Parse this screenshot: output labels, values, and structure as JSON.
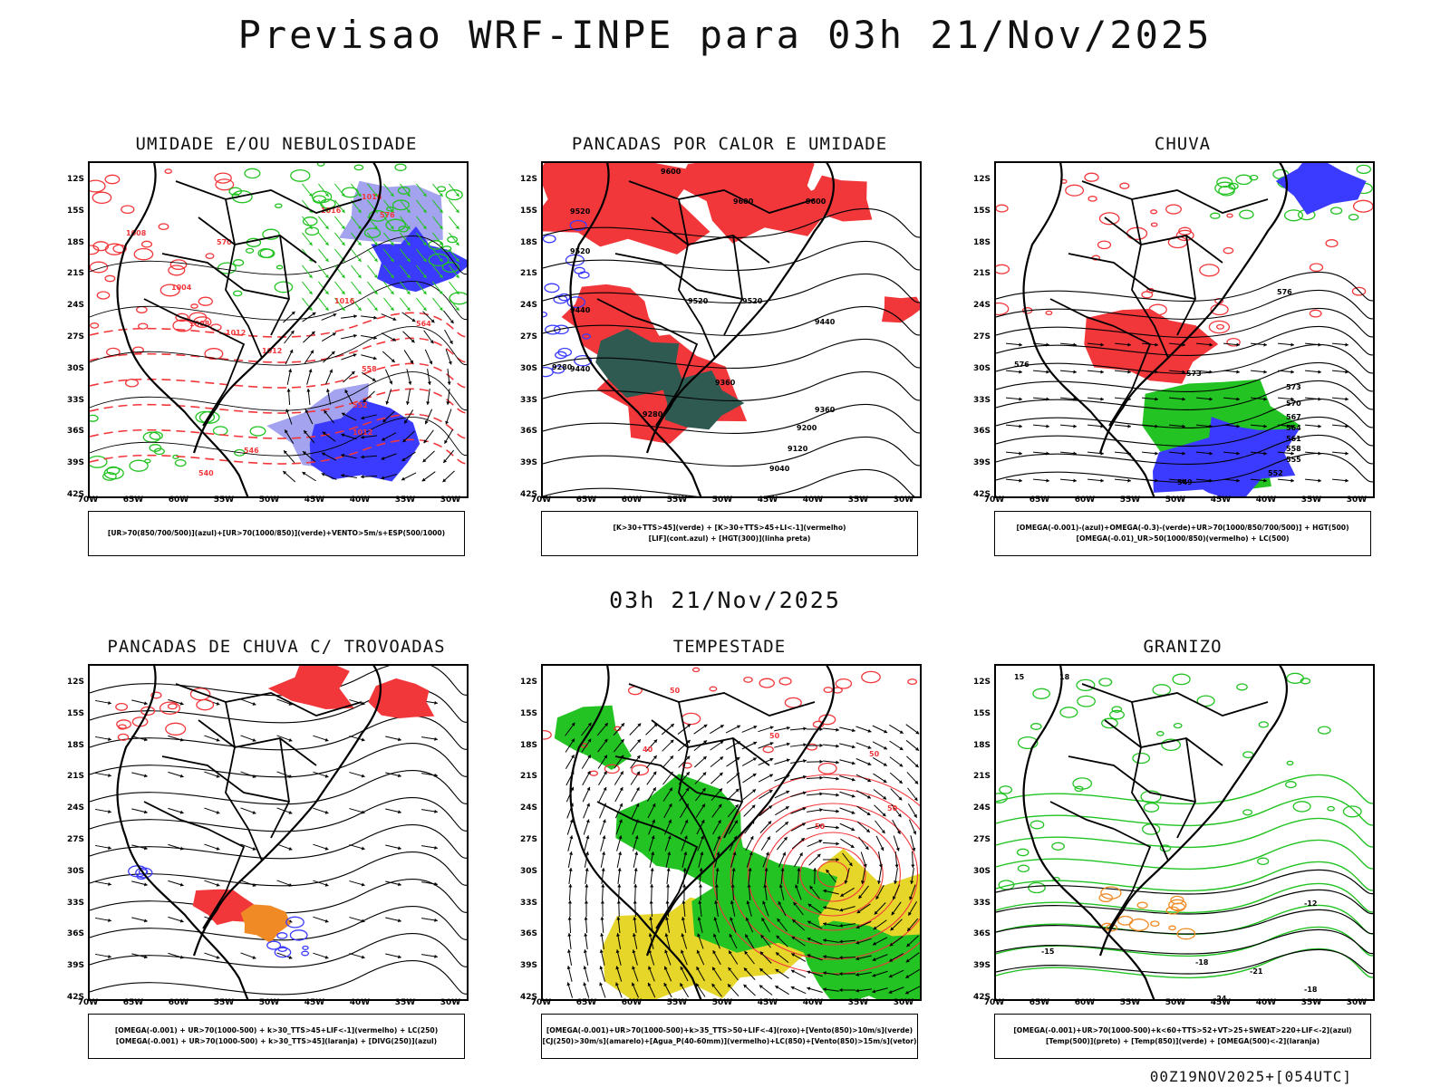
{
  "title": "Previsao WRF-INPE  para 03h 21/Nov/2025",
  "mid_title": "03h 21/Nov/2025",
  "footer": "00Z19NOV2025+[054UTC]",
  "lat_labels": [
    "12S",
    "15S",
    "18S",
    "21S",
    "24S",
    "27S",
    "30S",
    "33S",
    "36S",
    "39S",
    "42S"
  ],
  "lon_labels": [
    "70W",
    "65W",
    "60W",
    "55W",
    "50W",
    "45W",
    "40W",
    "35W",
    "30W"
  ],
  "colors": {
    "red": "#f2373b",
    "green": "#22c322",
    "blue": "#3b3bff",
    "light_blue": "#a3a3f0",
    "orange": "#f08a24",
    "yellow": "#e6d62a",
    "dark_teal": "#2f5a52",
    "purple": "#c020e0"
  },
  "panels": [
    {
      "title": "UMIDADE E/OU NEBULOSIDADE",
      "legend": [
        "[UR>70(850/700/500)](azul)+[UR>70(1000/850)](verde)+VENTO>5m/s+ESP(500/1000)"
      ],
      "contour_labels": [
        "1008",
        "1012",
        "1016",
        "1004",
        "1008",
        "1012",
        "1016",
        "1016",
        "1012",
        "576",
        "570",
        "564",
        "558",
        "552",
        "546",
        "540"
      ]
    },
    {
      "title": "PANCADAS POR CALOR E UMIDADE",
      "legend": [
        "[K>30+TTS>45](verde) + [K>30+TTS>45+LI<-1](vermelho)",
        "[LIF](cont.azul) + [HGT(300)](linha preta)"
      ],
      "contour_labels": [
        "9600",
        "9600",
        "9600",
        "9520",
        "9520",
        "9520",
        "9520",
        "9440",
        "9440",
        "9440",
        "9360",
        "9360",
        "9280",
        "9280",
        "9200",
        "9120",
        "9040"
      ]
    },
    {
      "title": "CHUVA",
      "legend": [
        "[OMEGA(-0.001)-(azul)+OMEGA(-0.3)-(verde)+UR>70(1000/850/700/500)] + HGT(500)",
        "[OMEGA(-0.01)_UR>50(1000/850)(vermelho) + LC(500)"
      ],
      "contour_labels": [
        "576",
        "576",
        "573",
        "573",
        "570",
        "567",
        "564",
        "561",
        "558",
        "555",
        "552",
        "549"
      ]
    },
    {
      "title": "PANCADAS DE CHUVA C/ TROVOADAS",
      "legend": [
        "[OMEGA(-0.001) + UR>70(1000-500) + k>30_TTS>45+LIF<-1](vermelho) + LC(250)",
        "[OMEGA(-0.001) + UR>70(1000-500) + k>30_TTS>45](laranja) + [DIVG(250)](azul)"
      ],
      "contour_labels": []
    },
    {
      "title": "TEMPESTADE",
      "legend": [
        "[OMEGA(-0.001)+UR>70(1000-500)+k>35_TTS>50+LIF<-4](roxo)+[Vento(850)>10m/s](verde)",
        "[CJ(250)>30m/s](amarelo)+[Agua_P(40-60mm)](vermelho)+LC(850)+[Vento(850)>15m/s](vetor)"
      ],
      "contour_labels": [
        "50",
        "50",
        "50",
        "50",
        "40",
        "50"
      ]
    },
    {
      "title": "GRANIZO",
      "legend": [
        "[OMEGA(-0.001)+UR>70(1000-500)+k<60+TTS>52+VT>25+SWEAT>220+LIF<-2](azul)",
        "[Temp(500)](preto) + [Temp(850)](verde) + [OMEGA(500)<-2](laranja)"
      ],
      "contour_labels": [
        "-12",
        "-15",
        "-18",
        "-21",
        "-24",
        "-18",
        "15",
        "18"
      ]
    }
  ]
}
